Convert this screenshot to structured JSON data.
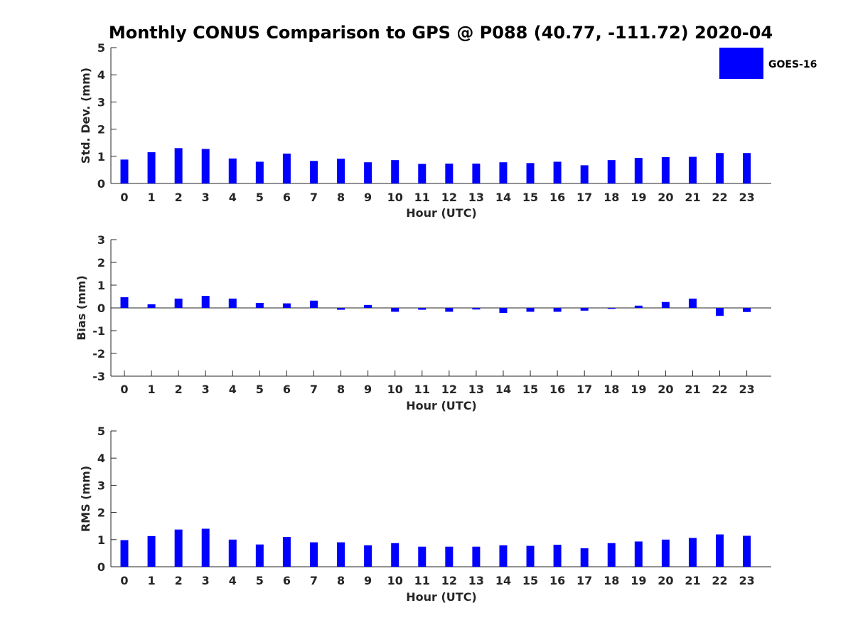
{
  "chart_data": {
    "title": "Monthly CONUS Comparison to GPS @ P088 (40.77, -111.72) 2020-04",
    "legend": {
      "entries": [
        "GOES-16"
      ],
      "placement": "top-right"
    },
    "series_color": "#0000ff",
    "panels": [
      {
        "type": "bar",
        "ylabel": "Std. Dev. (mm)",
        "xlabel": "Hour (UTC)",
        "ylim": [
          0,
          5
        ],
        "yticks": [
          "0",
          "1",
          "2",
          "3",
          "4",
          "5"
        ],
        "categories": [
          "0",
          "1",
          "2",
          "3",
          "4",
          "5",
          "6",
          "7",
          "8",
          "9",
          "10",
          "11",
          "12",
          "13",
          "14",
          "15",
          "16",
          "17",
          "18",
          "19",
          "20",
          "21",
          "22",
          "23"
        ],
        "series": [
          {
            "name": "GOES-16",
            "values": [
              0.88,
              1.15,
              1.3,
              1.27,
              0.92,
              0.8,
              1.1,
              0.83,
              0.91,
              0.78,
              0.86,
              0.72,
              0.73,
              0.73,
              0.78,
              0.75,
              0.8,
              0.67,
              0.86,
              0.94,
              0.97,
              0.98,
              1.12,
              1.12
            ]
          }
        ]
      },
      {
        "type": "bar",
        "ylabel": "Bias (mm)",
        "xlabel": "Hour (UTC)",
        "ylim": [
          -3,
          3
        ],
        "yticks": [
          "-3",
          "-2",
          "-1",
          "0",
          "1",
          "2",
          "3"
        ],
        "zero_line": true,
        "categories": [
          "0",
          "1",
          "2",
          "3",
          "4",
          "5",
          "6",
          "7",
          "8",
          "9",
          "10",
          "11",
          "12",
          "13",
          "14",
          "15",
          "16",
          "17",
          "18",
          "19",
          "20",
          "21",
          "22",
          "23"
        ],
        "series": [
          {
            "name": "GOES-16",
            "values": [
              0.47,
              0.16,
              0.41,
              0.53,
              0.41,
              0.22,
              0.2,
              0.32,
              -0.08,
              0.13,
              -0.17,
              -0.08,
              -0.17,
              -0.07,
              -0.22,
              -0.17,
              -0.17,
              -0.12,
              -0.04,
              0.1,
              0.26,
              0.41,
              -0.35,
              -0.18
            ]
          }
        ]
      },
      {
        "type": "bar",
        "ylabel": "RMS (mm)",
        "xlabel": "Hour (UTC)",
        "ylim": [
          0,
          5
        ],
        "yticks": [
          "0",
          "1",
          "2",
          "3",
          "4",
          "5"
        ],
        "categories": [
          "0",
          "1",
          "2",
          "3",
          "4",
          "5",
          "6",
          "7",
          "8",
          "9",
          "10",
          "11",
          "12",
          "13",
          "14",
          "15",
          "16",
          "17",
          "18",
          "19",
          "20",
          "21",
          "22",
          "23"
        ],
        "series": [
          {
            "name": "GOES-16",
            "values": [
              0.98,
              1.13,
              1.37,
              1.4,
              1.0,
              0.82,
              1.1,
              0.9,
              0.9,
              0.79,
              0.87,
              0.74,
              0.74,
              0.74,
              0.79,
              0.77,
              0.81,
              0.68,
              0.87,
              0.93,
              1.0,
              1.06,
              1.19,
              1.14
            ]
          }
        ]
      }
    ]
  }
}
